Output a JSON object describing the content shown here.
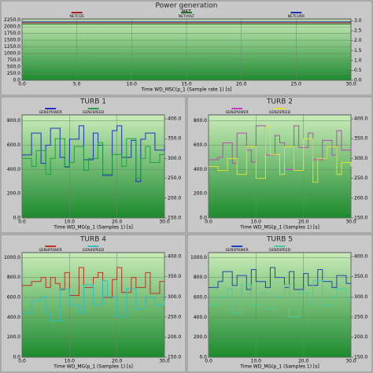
{
  "chart_data": [
    {
      "type": "line",
      "title": "Power generation",
      "legend_title": "NET",
      "x_label": "Time WD_MSC(p_1 (Sample rate 1) [s]",
      "x": [
        0,
        5,
        10,
        15,
        20,
        25,
        30
      ],
      "xlim": [
        0,
        30
      ],
      "xticks": [
        {
          "value": 0,
          "label": "0.0"
        },
        {
          "value": 5,
          "label": "5.0"
        },
        {
          "value": 10,
          "label": "10.0"
        },
        {
          "value": 15,
          "label": "15.0"
        },
        {
          "value": 20,
          "label": "20.0"
        },
        {
          "value": 25,
          "label": "25.0"
        },
        {
          "value": 30,
          "label": "30.0"
        }
      ],
      "ylim": [
        0,
        2300
      ],
      "yticks": [
        {
          "value": 0,
          "label": "0.0"
        },
        {
          "value": 250,
          "label": "250.0"
        },
        {
          "value": 500,
          "label": "500.0"
        },
        {
          "value": 750,
          "label": "750.0"
        },
        {
          "value": 1000,
          "label": "1000.0"
        },
        {
          "value": 1250,
          "label": "1250.0"
        },
        {
          "value": 1500,
          "label": "1500.0"
        },
        {
          "value": 1750,
          "label": "1750.0"
        },
        {
          "value": 2000,
          "label": "2000.0"
        },
        {
          "value": 2250,
          "label": "2250.0"
        }
      ],
      "y2lim": [
        0,
        3.1
      ],
      "y2ticks": [
        {
          "value": 0,
          "label": "0.0"
        },
        {
          "value": 0.5,
          "label": "0.5"
        },
        {
          "value": 1,
          "label": "1.0"
        },
        {
          "value": 1.5,
          "label": "1.5"
        },
        {
          "value": 2,
          "label": "2.0"
        },
        {
          "value": 2.5,
          "label": "2.5"
        },
        {
          "value": 3,
          "label": "3.0"
        }
      ],
      "series": [
        {
          "name": "NETCOS",
          "color": "#a02020",
          "axis": "y2",
          "values": [
            2.9,
            2.9,
            2.9,
            2.9,
            2.9,
            2.9,
            2.9
          ]
        },
        {
          "name": "NETVOLT",
          "color": "#207020",
          "values": [
            2100,
            2100,
            2100,
            2100,
            2100,
            2100,
            2100
          ]
        },
        {
          "name": "NETCURR",
          "color": "#2030b0",
          "axis": "y2",
          "values": [
            2.95,
            2.95,
            2.95,
            2.95,
            2.95,
            2.95,
            2.95
          ]
        }
      ]
    },
    {
      "type": "line",
      "title": "TURB 1",
      "x_label": "Time WD_MG(p_1 (Samples 1) [s]",
      "x": [
        0,
        1,
        2,
        3,
        4,
        5,
        6,
        7,
        8,
        9,
        10,
        11,
        12,
        13,
        14,
        15,
        16,
        17,
        18,
        19,
        20,
        21,
        22,
        23,
        24,
        25,
        26,
        27,
        28,
        29,
        30
      ],
      "xlim": [
        0,
        30
      ],
      "xticks": [
        {
          "value": 0,
          "label": "0.0"
        },
        {
          "value": 10,
          "label": "10.0"
        },
        {
          "value": 20,
          "label": "20.0"
        },
        {
          "value": 30,
          "label": "30.0"
        }
      ],
      "ylim": [
        0,
        850
      ],
      "yticks": [
        {
          "value": 0,
          "label": "0.0"
        },
        {
          "value": 200,
          "label": "200.0"
        },
        {
          "value": 400,
          "label": "400.0"
        },
        {
          "value": 600,
          "label": "600.0"
        },
        {
          "value": 800,
          "label": "800.0"
        }
      ],
      "y2lim": [
        150,
        410
      ],
      "y2ticks": [
        {
          "value": 150,
          "label": "150.0"
        },
        {
          "value": 200,
          "label": "200.0"
        },
        {
          "value": 250,
          "label": "250.0"
        },
        {
          "value": 300,
          "label": "300.0"
        },
        {
          "value": 350,
          "label": "350.0"
        },
        {
          "value": 400,
          "label": "400.0"
        }
      ],
      "series": [
        {
          "name": "GEN1POWER",
          "color": "#2030c0",
          "values": [
            520,
            520,
            700,
            700,
            450,
            600,
            740,
            740,
            500,
            420,
            650,
            650,
            760,
            480,
            480,
            700,
            600,
            350,
            350,
            720,
            760,
            500,
            500,
            640,
            300,
            650,
            700,
            700,
            560,
            560,
            600
          ]
        },
        {
          "name": "GEN1SPEED",
          "color": "#20a040",
          "axis": "y2",
          "values": [
            300,
            300,
            280,
            320,
            320,
            260,
            300,
            350,
            350,
            280,
            290,
            330,
            330,
            270,
            300,
            300,
            340,
            260,
            260,
            310,
            310,
            280,
            350,
            350,
            250,
            300,
            330,
            290,
            290,
            310,
            310
          ]
        }
      ]
    },
    {
      "type": "line",
      "title": "TURB 2",
      "x_label": "Time WD_MG(p_1 (Samples 1) [s]",
      "x": [
        0,
        1,
        2,
        3,
        4,
        5,
        6,
        7,
        8,
        9,
        10,
        11,
        12,
        13,
        14,
        15,
        16,
        17,
        18,
        19,
        20,
        21,
        22,
        23,
        24,
        25,
        26,
        27,
        28,
        29,
        30
      ],
      "xlim": [
        0,
        30
      ],
      "xticks": [
        {
          "value": 0,
          "label": "0.0"
        },
        {
          "value": 10,
          "label": "10.0"
        },
        {
          "value": 20,
          "label": "20.0"
        },
        {
          "value": 30,
          "label": "30.0"
        }
      ],
      "ylim": [
        0,
        850
      ],
      "yticks": [
        {
          "value": 0,
          "label": "0.0"
        },
        {
          "value": 200,
          "label": "200.0"
        },
        {
          "value": 400,
          "label": "400.0"
        },
        {
          "value": 600,
          "label": "600.0"
        },
        {
          "value": 800,
          "label": "800.0"
        }
      ],
      "y2lim": [
        150,
        410
      ],
      "y2ticks": [
        {
          "value": 150,
          "label": "150.0"
        },
        {
          "value": 200,
          "label": "200.0"
        },
        {
          "value": 250,
          "label": "250.0"
        },
        {
          "value": 300,
          "label": "300.0"
        },
        {
          "value": 350,
          "label": "350.0"
        },
        {
          "value": 400,
          "label": "400.0"
        }
      ],
      "series": [
        {
          "name": "GEN2POWER",
          "color": "#c040c0",
          "values": [
            480,
            480,
            500,
            620,
            620,
            450,
            700,
            700,
            560,
            460,
            760,
            760,
            520,
            520,
            680,
            620,
            400,
            400,
            760,
            580,
            580,
            700,
            480,
            480,
            640,
            640,
            520,
            720,
            560,
            560,
            600
          ]
        },
        {
          "name": "GEN2SPEED",
          "color": "#e0e030",
          "axis": "y2",
          "values": [
            280,
            280,
            270,
            270,
            300,
            300,
            260,
            260,
            330,
            330,
            250,
            250,
            380,
            310,
            310,
            260,
            330,
            330,
            270,
            270,
            350,
            350,
            240,
            300,
            300,
            330,
            330,
            260,
            290,
            290,
            280
          ]
        }
      ]
    },
    {
      "type": "line",
      "title": "TURB 4",
      "x_label": "Time WD_MG(p_1 (Samples 1) [s]",
      "x": [
        0,
        1,
        2,
        3,
        4,
        5,
        6,
        7,
        8,
        9,
        10,
        11,
        12,
        13,
        14,
        15,
        16,
        17,
        18,
        19,
        20,
        21,
        22,
        23,
        24,
        25,
        26,
        27,
        28,
        29,
        30
      ],
      "xlim": [
        0,
        30
      ],
      "xticks": [
        {
          "value": 0,
          "label": "0.0"
        },
        {
          "value": 10,
          "label": "10.0"
        },
        {
          "value": 20,
          "label": "20.0"
        },
        {
          "value": 30,
          "label": "30.0"
        }
      ],
      "ylim": [
        0,
        1050
      ],
      "yticks": [
        {
          "value": 0,
          "label": "0.0"
        },
        {
          "value": 200,
          "label": "200.0"
        },
        {
          "value": 400,
          "label": "400.0"
        },
        {
          "value": 600,
          "label": "600.0"
        },
        {
          "value": 800,
          "label": "800.0"
        },
        {
          "value": 1000,
          "label": "1000.0"
        }
      ],
      "y2lim": [
        150,
        410
      ],
      "y2ticks": [
        {
          "value": 150,
          "label": "150.0"
        },
        {
          "value": 200,
          "label": "200.0"
        },
        {
          "value": 250,
          "label": "250.0"
        },
        {
          "value": 300,
          "label": "300.0"
        },
        {
          "value": 350,
          "label": "350.0"
        },
        {
          "value": 400,
          "label": "400.0"
        }
      ],
      "series": [
        {
          "name": "GEN4POWER",
          "color": "#c03020",
          "values": [
            720,
            720,
            760,
            760,
            800,
            700,
            800,
            740,
            680,
            850,
            620,
            620,
            900,
            700,
            700,
            800,
            850,
            600,
            600,
            780,
            900,
            650,
            650,
            800,
            700,
            700,
            850,
            640,
            640,
            760,
            760
          ]
        },
        {
          "name": "GEN4SPEED",
          "color": "#30c0c0",
          "axis": "y2",
          "values": [
            260,
            260,
            290,
            290,
            300,
            260,
            240,
            240,
            320,
            320,
            280,
            280,
            260,
            330,
            330,
            280,
            280,
            340,
            300,
            300,
            250,
            250,
            320,
            320,
            270,
            270,
            300,
            300,
            280,
            280,
            290
          ]
        }
      ]
    },
    {
      "type": "line",
      "title": "TURB 5",
      "x_label": "Time WD_MG(p_1 (Samples 1) [s]",
      "x": [
        0,
        1,
        2,
        3,
        4,
        5,
        6,
        7,
        8,
        9,
        10,
        11,
        12,
        13,
        14,
        15,
        16,
        17,
        18,
        19,
        20,
        21,
        22,
        23,
        24,
        25,
        26,
        27,
        28,
        29,
        30
      ],
      "xlim": [
        0,
        30
      ],
      "xticks": [
        {
          "value": 0,
          "label": "0.0"
        },
        {
          "value": 10,
          "label": "10.0"
        },
        {
          "value": 20,
          "label": "20.0"
        },
        {
          "value": 30,
          "label": "30.0"
        }
      ],
      "ylim": [
        0,
        1050
      ],
      "yticks": [
        {
          "value": 0,
          "label": "0.0"
        },
        {
          "value": 200,
          "label": "200.0"
        },
        {
          "value": 400,
          "label": "400.0"
        },
        {
          "value": 600,
          "label": "600.0"
        },
        {
          "value": 800,
          "label": "800.0"
        },
        {
          "value": 1000,
          "label": "1000.0"
        }
      ],
      "y2lim": [
        150,
        410
      ],
      "y2ticks": [
        {
          "value": 150,
          "label": "150.0"
        },
        {
          "value": 200,
          "label": "200.0"
        },
        {
          "value": 250,
          "label": "250.0"
        },
        {
          "value": 300,
          "label": "300.0"
        },
        {
          "value": 350,
          "label": "350.0"
        },
        {
          "value": 400,
          "label": "400.0"
        }
      ],
      "series": [
        {
          "name": "GEN5POWER",
          "color": "#2040c0",
          "values": [
            700,
            700,
            760,
            860,
            860,
            720,
            820,
            820,
            680,
            880,
            760,
            760,
            700,
            900,
            800,
            800,
            700,
            860,
            680,
            680,
            840,
            720,
            720,
            880,
            760,
            760,
            700,
            820,
            820,
            740,
            740
          ]
        },
        {
          "name": "GEN5SPEED",
          "color": "#40d0a0",
          "axis": "y2",
          "values": [
            280,
            280,
            300,
            300,
            320,
            260,
            260,
            330,
            330,
            280,
            280,
            310,
            270,
            270,
            300,
            300,
            330,
            250,
            250,
            310,
            310,
            280,
            340,
            340,
            280,
            280,
            300,
            320,
            320,
            290,
            290
          ]
        }
      ]
    }
  ]
}
